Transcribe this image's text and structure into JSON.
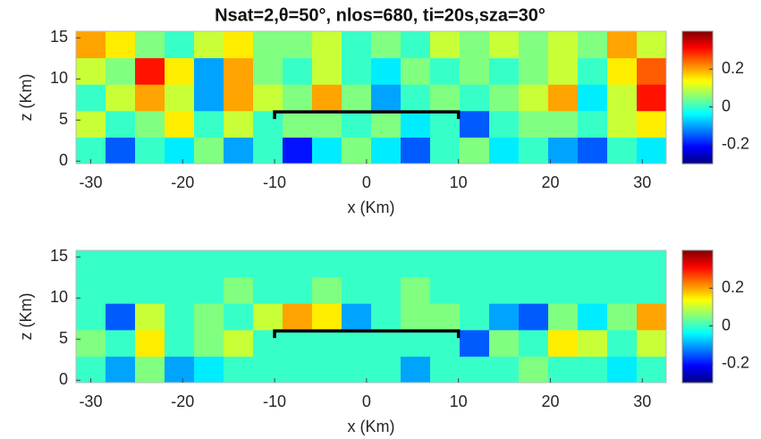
{
  "chart_data": [
    {
      "type": "heatmap",
      "title": "Nsat=2,θ=50°, nlos=680, ti=20s,sza=30°",
      "xlabel": "x (Km)",
      "ylabel": "z (Km)",
      "xlim": [
        -31.6,
        32.6
      ],
      "ylim": [
        -0.3,
        15.8
      ],
      "xticks": [
        -30,
        -20,
        -10,
        0,
        10,
        20,
        30
      ],
      "yticks": [
        0,
        5,
        10,
        15
      ],
      "x_bins": [
        -31.6,
        -28.39,
        -25.18,
        -21.97,
        -18.76,
        -15.55,
        -12.34,
        -9.13,
        -5.92,
        -2.71,
        0.5,
        3.71,
        6.92,
        10.13,
        13.34,
        16.55,
        19.76,
        22.97,
        26.18,
        29.39,
        32.6
      ],
      "y_bins": [
        -0.3,
        2.92,
        6.14,
        9.36,
        12.58,
        15.8
      ],
      "values": [
        [
          0,
          -0.15,
          0,
          -0.05,
          0.05,
          -0.1,
          0,
          -0.2,
          -0.05,
          0.05,
          -0.05,
          -0.15,
          0,
          0.05,
          -0.05,
          0,
          -0.1,
          -0.15,
          0,
          -0.05
        ],
        [
          0.1,
          0,
          0.05,
          0.15,
          0,
          0.1,
          0,
          0.05,
          0.05,
          0,
          0.05,
          -0.05,
          0,
          -0.15,
          0,
          0.05,
          0.05,
          0,
          0.1,
          0.15
        ],
        [
          0,
          0.1,
          0.2,
          0.1,
          -0.1,
          0.2,
          0.1,
          0.05,
          0.2,
          0.05,
          -0.1,
          0,
          0.05,
          0,
          0.05,
          0.1,
          0.2,
          -0.05,
          0.1,
          0.3
        ],
        [
          0.1,
          0.05,
          0.3,
          0.15,
          -0.1,
          0.2,
          0.05,
          0,
          0.1,
          0,
          -0.05,
          0.05,
          0,
          0.05,
          0,
          0.05,
          0.1,
          0,
          0.15,
          0.25
        ],
        [
          0.2,
          0.15,
          0.05,
          0,
          0.1,
          0.15,
          0.05,
          0.05,
          0.1,
          0,
          0.05,
          0,
          0.1,
          0.05,
          0.1,
          0.05,
          0.1,
          0.05,
          0.2,
          0.1
        ]
      ],
      "colormap": "jet",
      "clim": [
        -0.3,
        0.4
      ],
      "cticks": [
        -0.2,
        0,
        0.2
      ],
      "bracket": {
        "x": [
          -10,
          10
        ],
        "y": 6
      }
    },
    {
      "type": "heatmap",
      "xlabel": "x (Km)",
      "ylabel": "z (Km)",
      "xlim": [
        -31.6,
        32.6
      ],
      "ylim": [
        -0.3,
        15.8
      ],
      "xticks": [
        -30,
        -20,
        -10,
        0,
        10,
        20,
        30
      ],
      "yticks": [
        0,
        5,
        10,
        15
      ],
      "x_bins": [
        -31.6,
        -28.39,
        -25.18,
        -21.97,
        -18.76,
        -15.55,
        -12.34,
        -9.13,
        -5.92,
        -2.71,
        0.5,
        3.71,
        6.92,
        10.13,
        13.34,
        16.55,
        19.76,
        22.97,
        26.18,
        29.39,
        32.6
      ],
      "y_bins": [
        -0.3,
        2.92,
        6.14,
        9.36,
        12.58,
        15.8
      ],
      "values": [
        [
          0,
          -0.1,
          0.05,
          -0.1,
          -0.05,
          0,
          0,
          0,
          0,
          0,
          0,
          -0.1,
          0,
          0,
          0,
          0.05,
          0,
          0,
          -0.05,
          0
        ],
        [
          0.05,
          0,
          0.15,
          0,
          0.05,
          0.1,
          0,
          0,
          0,
          0,
          0,
          0,
          0,
          -0.15,
          0.05,
          0,
          0.15,
          0.1,
          0,
          0.1
        ],
        [
          0,
          -0.15,
          0.1,
          0,
          0.05,
          0,
          0.1,
          0.2,
          0.15,
          -0.1,
          0,
          0.05,
          0.05,
          0,
          -0.1,
          -0.15,
          0.05,
          -0.05,
          0.05,
          0.2
        ],
        [
          0,
          0,
          0,
          0,
          0,
          0.05,
          0,
          0,
          0.05,
          0,
          0,
          0.05,
          0,
          0,
          0,
          0,
          0,
          0,
          0,
          0
        ],
        [
          0,
          0,
          0,
          0,
          0,
          0,
          0,
          0,
          0,
          0,
          0,
          0,
          0,
          0,
          0,
          0,
          0,
          0,
          0,
          0
        ]
      ],
      "colormap": "jet",
      "clim": [
        -0.3,
        0.4
      ],
      "cticks": [
        -0.2,
        0,
        0.2
      ],
      "bracket": {
        "x": [
          -10,
          10
        ],
        "y": 6
      }
    }
  ]
}
